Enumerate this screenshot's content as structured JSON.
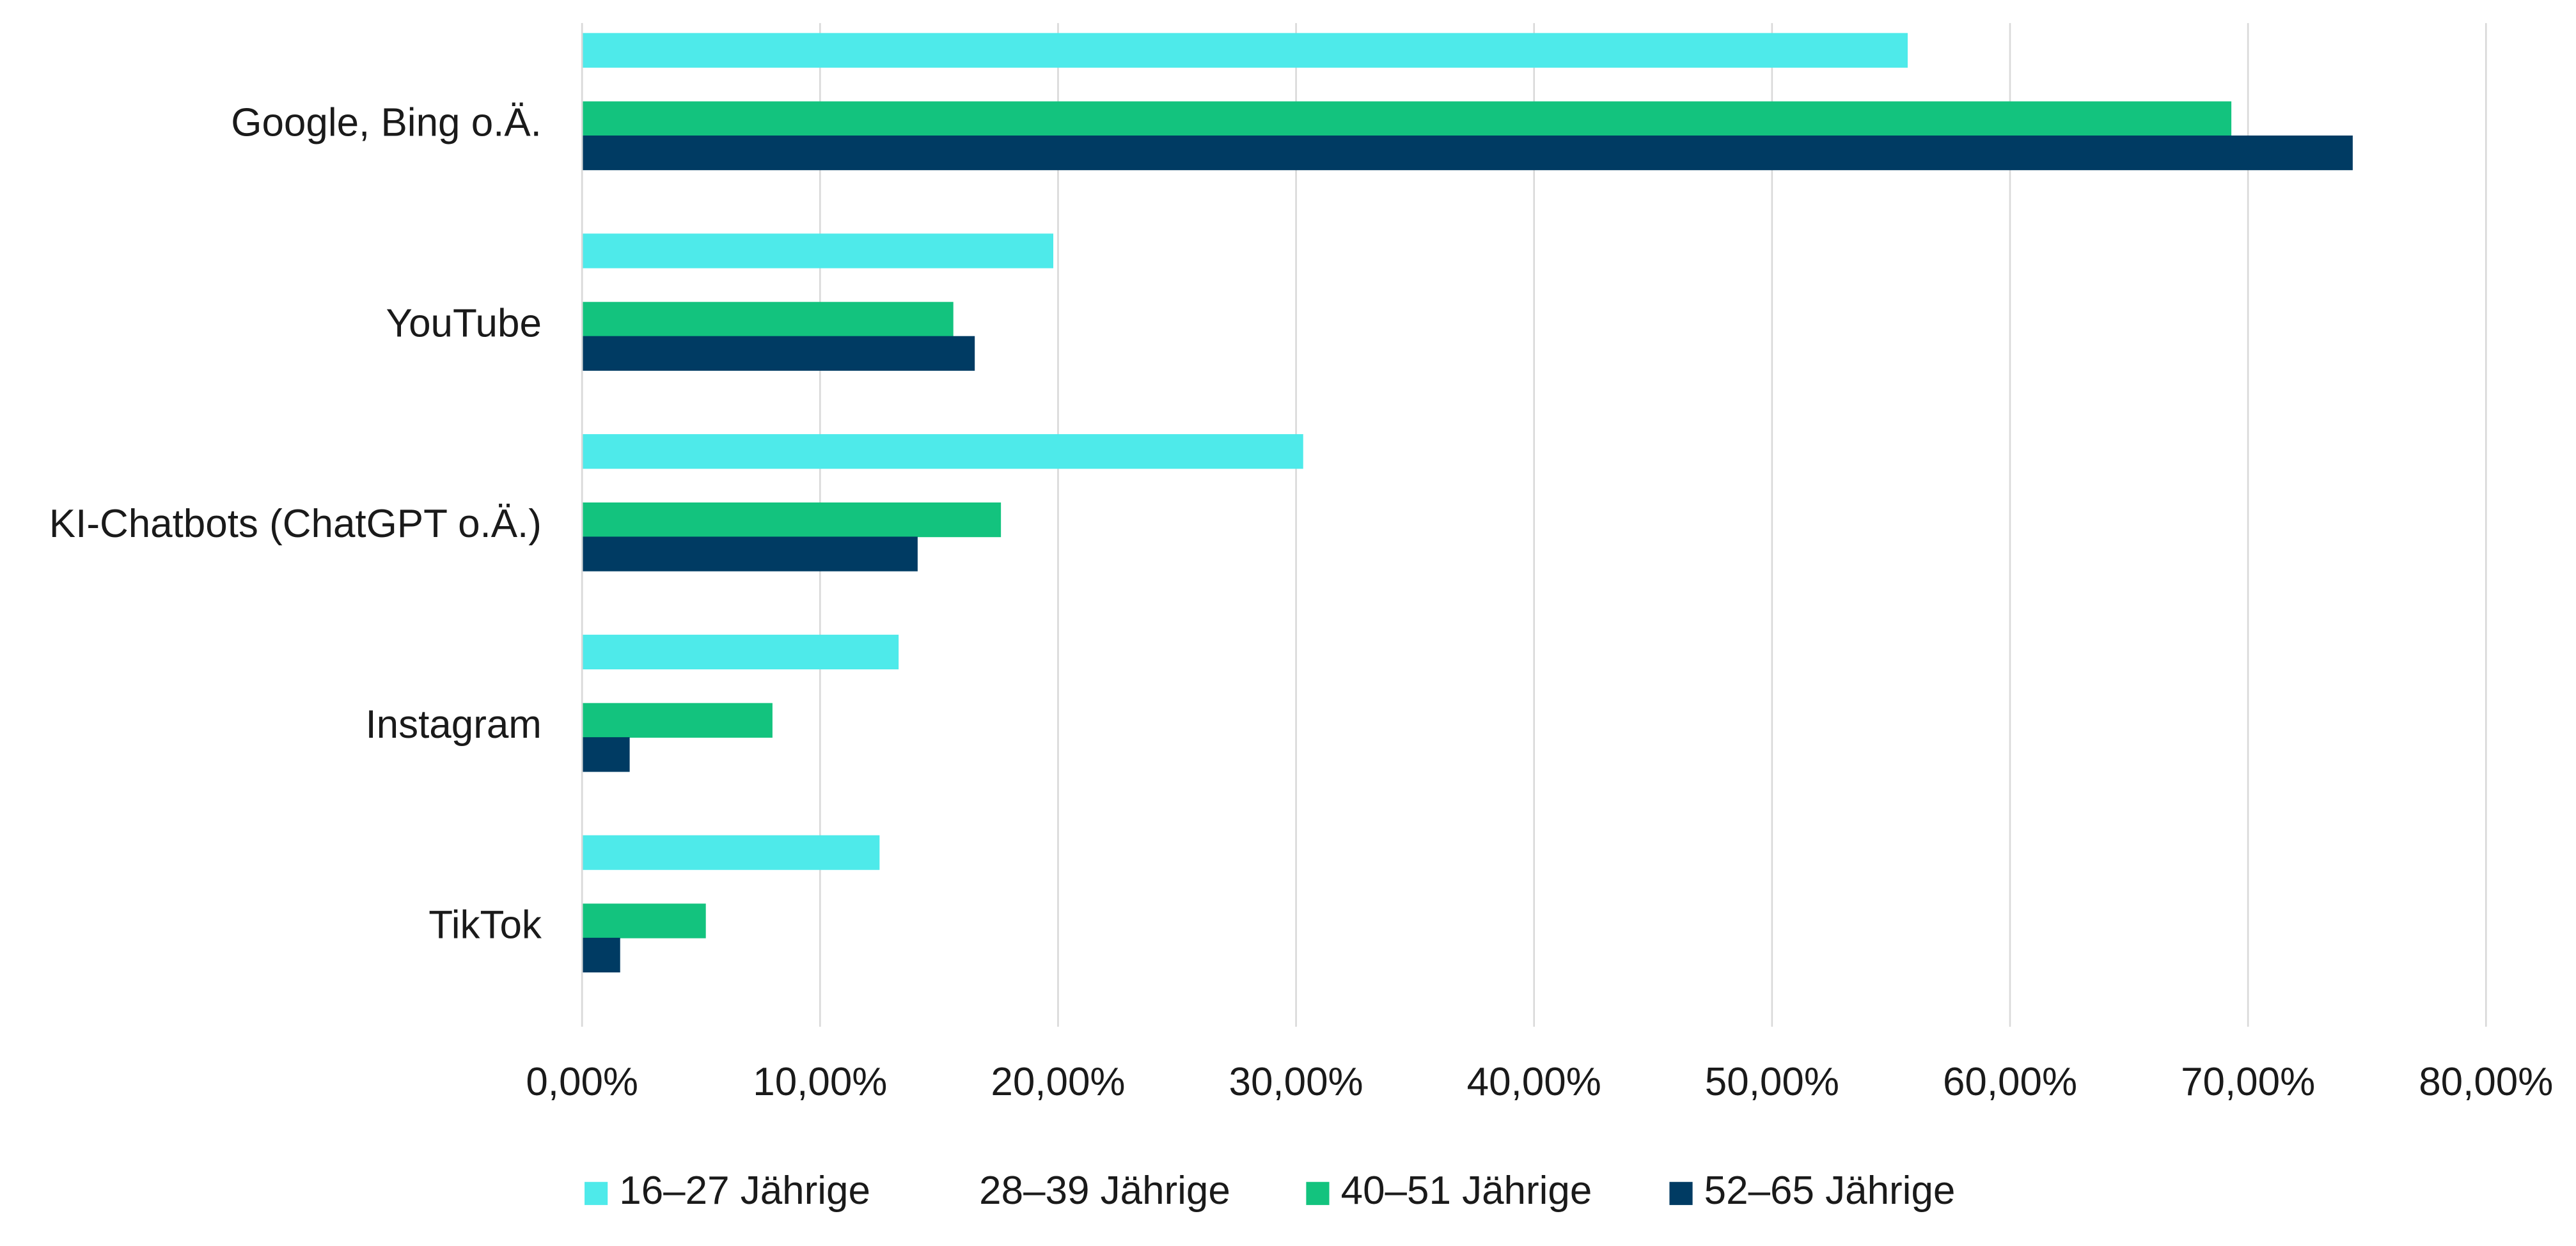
{
  "chart_data": {
    "type": "bar",
    "orientation": "horizontal",
    "categories": [
      "Google, Bing o.Ä.",
      "YouTube",
      "KI-Chatbots (ChatGPT o.Ä.)",
      "Instagram",
      "TikTok"
    ],
    "series": [
      {
        "name": "16–27 Jährige",
        "color": "#4eeaea",
        "values": [
          55.7,
          19.8,
          30.3,
          13.3,
          12.5
        ]
      },
      {
        "name": "28–39 Jährige",
        "color": "#ffffff",
        "values": [
          0,
          0,
          0,
          0,
          0
        ]
      },
      {
        "name": "40–51 Jährige",
        "color": "#13c37e",
        "values": [
          69.3,
          15.6,
          17.6,
          8.0,
          5.2
        ]
      },
      {
        "name": "52–65 Jährige",
        "color": "#003b63",
        "values": [
          74.4,
          16.5,
          14.1,
          2.0,
          1.6
        ]
      }
    ],
    "x_ticks": [
      "0,00%",
      "10,00%",
      "20,00%",
      "30,00%",
      "40,00%",
      "50,00%",
      "60,00%",
      "70,00%",
      "80,00%"
    ],
    "xlim": [
      0,
      80
    ],
    "grid": true,
    "legend_position": "bottom",
    "title": "",
    "xlabel": "",
    "ylabel": ""
  }
}
